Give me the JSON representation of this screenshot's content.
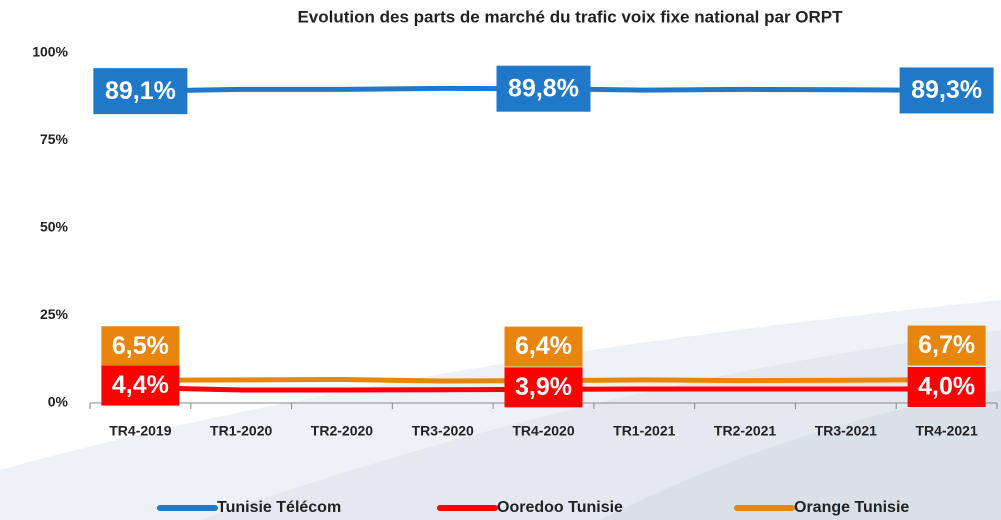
{
  "chart_data": {
    "type": "line",
    "title": "Evolution des parts de marché du trafic voix fixe national par ORPT",
    "categories": [
      "TR4-2019",
      "TR1-2020",
      "TR2-2020",
      "TR3-2020",
      "TR4-2020",
      "TR1-2021",
      "TR2-2021",
      "TR3-2021",
      "TR4-2021"
    ],
    "series": [
      {
        "name": "Tunisie Télécom",
        "color": "#1f78c8",
        "values": [
          89.1,
          89.6,
          89.6,
          89.9,
          89.8,
          89.4,
          89.6,
          89.5,
          89.3
        ],
        "value_labels": [
          "89,1%",
          null,
          null,
          null,
          "89,8%",
          null,
          null,
          null,
          "89,3%"
        ]
      },
      {
        "name": "Ooredoo Tunisie",
        "color": "#ff0000",
        "values": [
          4.4,
          3.7,
          3.7,
          3.8,
          3.9,
          4.0,
          4.0,
          4.0,
          4.0
        ],
        "value_labels": [
          "4,4%",
          null,
          null,
          null,
          "3,9%",
          null,
          null,
          null,
          "4,0%"
        ]
      },
      {
        "name": "Orange Tunisie",
        "color": "#e8850c",
        "values": [
          6.5,
          6.6,
          6.7,
          6.3,
          6.4,
          6.6,
          6.4,
          6.5,
          6.7
        ],
        "value_labels": [
          "6,5%",
          null,
          null,
          null,
          "6,4%",
          null,
          null,
          null,
          "6,7%"
        ]
      }
    ],
    "ylim": [
      0,
      100
    ],
    "yticks": [
      {
        "value": 0,
        "label": "0%"
      },
      {
        "value": 25,
        "label": "25%"
      },
      {
        "value": 50,
        "label": "50%"
      },
      {
        "value": 75,
        "label": "75%"
      },
      {
        "value": 100,
        "label": "100%"
      }
    ],
    "legend": "bottom"
  }
}
